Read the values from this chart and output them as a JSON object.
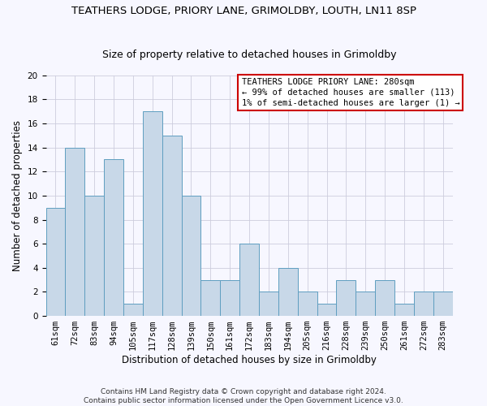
{
  "title1": "TEATHERS LODGE, PRIORY LANE, GRIMOLDBY, LOUTH, LN11 8SP",
  "title2": "Size of property relative to detached houses in Grimoldby",
  "xlabel": "Distribution of detached houses by size in Grimoldby",
  "ylabel": "Number of detached properties",
  "categories": [
    "61sqm",
    "72sqm",
    "83sqm",
    "94sqm",
    "105sqm",
    "117sqm",
    "128sqm",
    "139sqm",
    "150sqm",
    "161sqm",
    "172sqm",
    "183sqm",
    "194sqm",
    "205sqm",
    "216sqm",
    "228sqm",
    "239sqm",
    "250sqm",
    "261sqm",
    "272sqm",
    "283sqm"
  ],
  "values": [
    9,
    14,
    10,
    13,
    1,
    17,
    15,
    10,
    3,
    3,
    6,
    2,
    4,
    2,
    1,
    3,
    2,
    3,
    1,
    2,
    2
  ],
  "bar_color": "#c8d8e8",
  "bar_edge_color": "#5f9ec0",
  "annotation_title": "TEATHERS LODGE PRIORY LANE: 280sqm",
  "annotation_line1": "← 99% of detached houses are smaller (113)",
  "annotation_line2": "1% of semi-detached houses are larger (1) →",
  "annotation_box_color": "#ffffff",
  "annotation_box_edge": "#cc0000",
  "ylim": [
    0,
    20
  ],
  "yticks": [
    0,
    2,
    4,
    6,
    8,
    10,
    12,
    14,
    16,
    18,
    20
  ],
  "footer": "Contains HM Land Registry data © Crown copyright and database right 2024.\nContains public sector information licensed under the Open Government Licence v3.0.",
  "bg_color": "#f7f7ff",
  "grid_color": "#ccccdd",
  "title1_fontsize": 9.5,
  "title2_fontsize": 9.0,
  "xlabel_fontsize": 8.5,
  "ylabel_fontsize": 8.5,
  "tick_fontsize": 7.5,
  "ann_fontsize": 7.5,
  "footer_fontsize": 6.5
}
